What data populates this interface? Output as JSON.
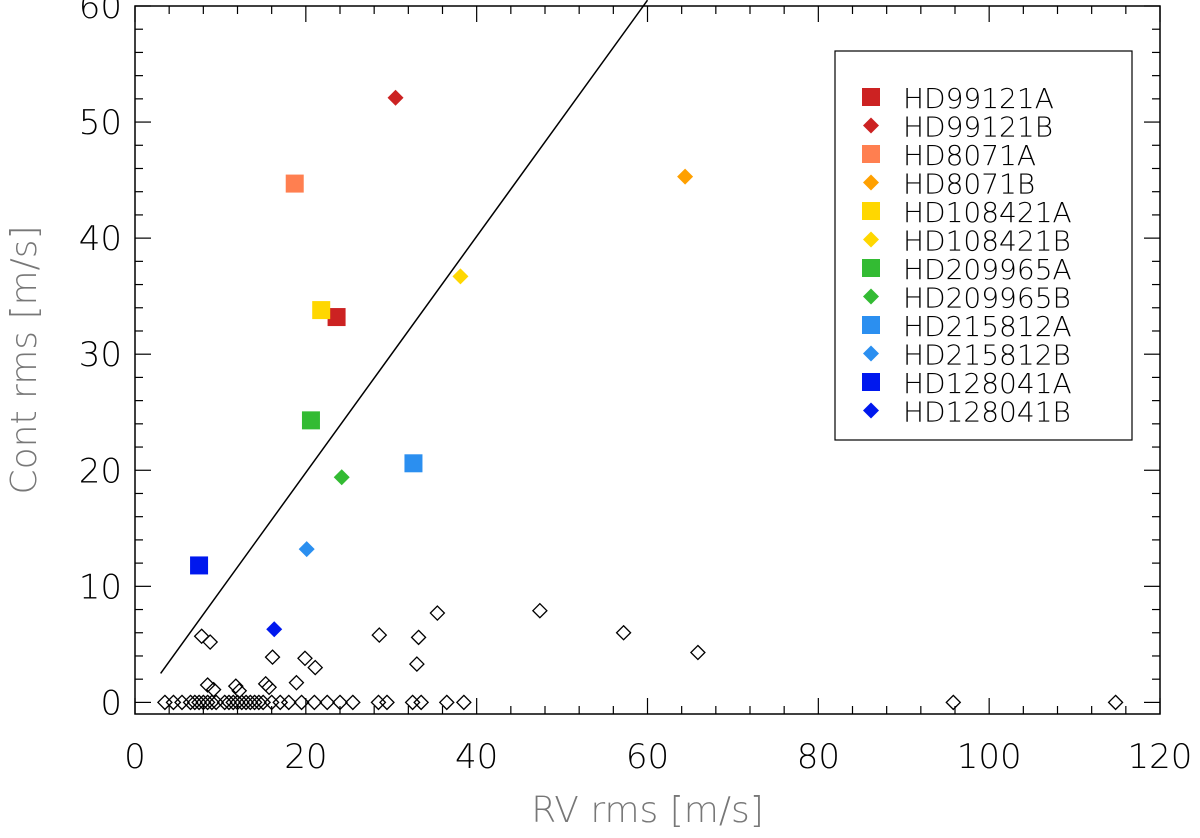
{
  "chart_data": {
    "type": "scatter",
    "xlabel": "RV rms [m/s]",
    "ylabel": "Cont rms [m/s]",
    "xlim": [
      0,
      120
    ],
    "ylim": [
      -1,
      60
    ],
    "xticks": [
      "0",
      "20",
      "40",
      "60",
      "80",
      "100",
      "120"
    ],
    "yticks": [
      "0",
      "10",
      "20",
      "30",
      "40",
      "50",
      "60"
    ],
    "xtick_values": [
      0,
      20,
      40,
      60,
      80,
      100,
      120
    ],
    "ytick_values": [
      0,
      10,
      20,
      30,
      40,
      50,
      60
    ],
    "reference_line": {
      "x": [
        3,
        60
      ],
      "y": [
        2.5,
        60.5
      ]
    },
    "legend_position": "top-right",
    "series": [
      {
        "name": "HD99121A",
        "marker": "square",
        "color": "#cc2222",
        "x": [
          23.6
        ],
        "y": [
          33.2
        ]
      },
      {
        "name": "HD99121B",
        "marker": "diamond",
        "color": "#cc2222",
        "x": [
          30.5
        ],
        "y": [
          52.1
        ]
      },
      {
        "name": "HD8071A",
        "marker": "square",
        "color": "#ff7f50",
        "x": [
          18.7
        ],
        "y": [
          44.7
        ]
      },
      {
        "name": "HD8071B",
        "marker": "diamond",
        "color": "#ffa000",
        "x": [
          64.4
        ],
        "y": [
          45.3
        ]
      },
      {
        "name": "HD108421A",
        "marker": "square",
        "color": "#ffd700",
        "x": [
          21.8
        ],
        "y": [
          33.8
        ]
      },
      {
        "name": "HD108421B",
        "marker": "diamond",
        "color": "#ffd700",
        "x": [
          38.1
        ],
        "y": [
          36.7
        ]
      },
      {
        "name": "HD209965A",
        "marker": "square",
        "color": "#33bb33",
        "x": [
          20.6
        ],
        "y": [
          24.3
        ]
      },
      {
        "name": "HD209965B",
        "marker": "diamond",
        "color": "#33bb33",
        "x": [
          24.2
        ],
        "y": [
          19.4
        ]
      },
      {
        "name": "HD215812A",
        "marker": "square",
        "color": "#2b8ff0",
        "x": [
          32.6
        ],
        "y": [
          20.6
        ]
      },
      {
        "name": "HD215812B",
        "marker": "diamond",
        "color": "#2b8ff0",
        "x": [
          20.1
        ],
        "y": [
          13.2
        ]
      },
      {
        "name": "HD128041A",
        "marker": "square",
        "color": "#0018ee",
        "x": [
          7.5
        ],
        "y": [
          11.8
        ]
      },
      {
        "name": "HD128041B",
        "marker": "diamond",
        "color": "#0018ee",
        "x": [
          16.3
        ],
        "y": [
          6.3
        ]
      },
      {
        "name": "other",
        "marker": "open-diamond",
        "color": "#000000",
        "in_legend": false,
        "x": [
          7.8,
          8.8,
          16.1,
          19.9,
          21.1,
          28.6,
          33.2,
          35.4,
          47.4,
          57.2,
          65.9,
          33.0,
          8.5,
          9.2,
          11.8,
          12.2,
          15.3,
          15.7,
          18.9,
          3.5,
          4.5,
          5.5,
          6.5,
          7.0,
          7.5,
          8.0,
          8.5,
          9.0,
          9.5,
          10.5,
          11.0,
          11.5,
          12.0,
          12.5,
          13.0,
          13.5,
          14.0,
          14.5,
          15.0,
          16.0,
          17.0,
          18.0,
          19.5,
          21.0,
          22.5,
          24.0,
          25.5,
          28.5,
          29.5,
          32.5,
          33.5,
          36.5,
          38.5,
          95.8,
          114.8
        ],
        "y": [
          5.7,
          5.2,
          3.9,
          3.8,
          3.0,
          5.8,
          5.6,
          7.7,
          7.9,
          6.0,
          4.3,
          3.3,
          1.5,
          1.1,
          1.4,
          1.0,
          1.6,
          1.3,
          1.7,
          0,
          0,
          0,
          0,
          0,
          0,
          0,
          0,
          0,
          0,
          0,
          0,
          0,
          0,
          0,
          0,
          0,
          0,
          0,
          0,
          0,
          0,
          0,
          0,
          0,
          0,
          0,
          0,
          0,
          0,
          0,
          0,
          0,
          0,
          0,
          0
        ]
      }
    ]
  }
}
